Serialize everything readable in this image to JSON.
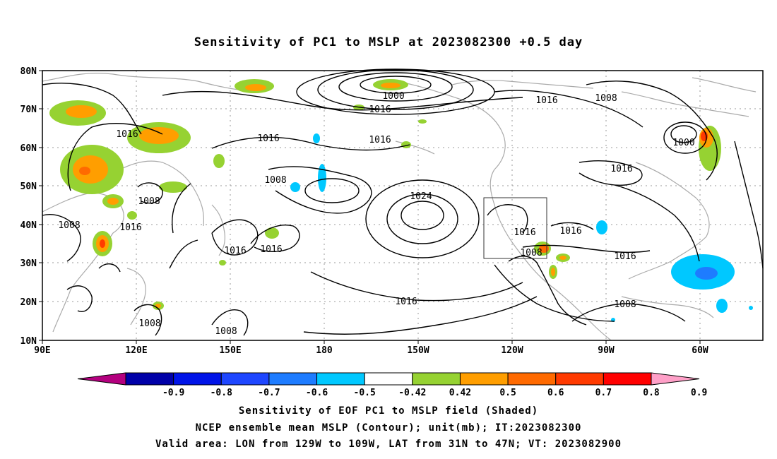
{
  "title": "Sensitivity of PC1 to MSLP at 2023082300 +0.5 day",
  "axes": {
    "lat_labels": [
      "80N",
      "70N",
      "60N",
      "50N",
      "40N",
      "30N",
      "20N",
      "10N"
    ],
    "lon_labels": [
      "90E",
      "120E",
      "150E",
      "180",
      "150W",
      "120W",
      "90W",
      "60W"
    ]
  },
  "contour_labels": [
    "1000",
    "1016",
    "1016",
    "1016",
    "1016",
    "1008",
    "1016",
    "1008",
    "1024",
    "1008",
    "1008",
    "1016",
    "1016",
    "1016",
    "1016",
    "1008",
    "1016",
    "1016",
    "1008",
    "1008",
    "1008",
    "1000",
    "1016"
  ],
  "colorbar": {
    "ticks": [
      "-0.9",
      "-0.8",
      "-0.7",
      "-0.6",
      "-0.5",
      "-0.42",
      "0.42",
      "0.5",
      "0.6",
      "0.7",
      "0.8",
      "0.9"
    ],
    "colors": [
      "#b4007f",
      "#0000a8",
      "#0014e8",
      "#1e46ff",
      "#1e7cff",
      "#00c8ff",
      "#ffffff",
      "#96d232",
      "#ff9e00",
      "#ff6a00",
      "#ff3a00",
      "#ff0000",
      "#ffa0c8"
    ]
  },
  "captions": [
    "Sensitivity of EOF PC1 to MSLP field (Shaded)",
    "NCEP ensemble mean MSLP (Contour); unit(mb); IT:2023082300",
    "Valid area: LON from 129W to 109W, LAT from 31N to 47N; VT: 2023082900"
  ]
}
